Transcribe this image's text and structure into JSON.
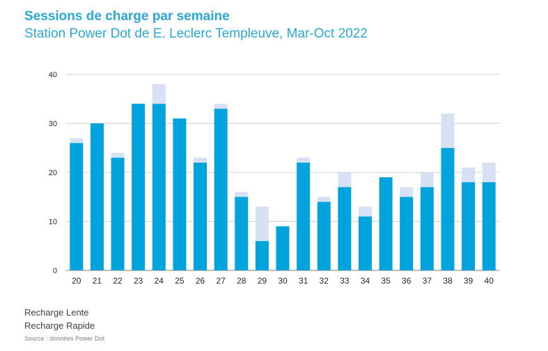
{
  "chart_data": {
    "type": "bar",
    "stacked": true,
    "title": "Sessions de charge par semaine",
    "subtitle": "Station Power Dot de E. Leclerc Templeuve, Mar-Oct 2022",
    "categories": [
      "20",
      "21",
      "22",
      "23",
      "24",
      "25",
      "26",
      "27",
      "28",
      "29",
      "30",
      "31",
      "32",
      "33",
      "34",
      "35",
      "36",
      "37",
      "38",
      "39",
      "40"
    ],
    "series": [
      {
        "name": "Recharge Rapide",
        "color": "#00a3dc",
        "values": [
          26,
          30,
          23,
          34,
          34,
          31,
          22,
          33,
          15,
          6,
          9,
          22,
          14,
          17,
          11,
          19,
          15,
          17,
          25,
          18,
          18
        ]
      },
      {
        "name": "Recharge Lente",
        "color": "#d6e2f3",
        "values": [
          1,
          0,
          1,
          0,
          4,
          0,
          1,
          1,
          1,
          7,
          0,
          1,
          1,
          3,
          2,
          0,
          2,
          3,
          7,
          3,
          4
        ]
      }
    ],
    "ylim": [
      0,
      40
    ],
    "yticks": [
      0,
      10,
      20,
      30,
      40
    ],
    "grid": true,
    "legend_position": "bottom-left"
  },
  "legend": {
    "lente": "Recharge Lente",
    "rapide": "Recharge Rapide"
  },
  "source": "Source : données Power Dot"
}
